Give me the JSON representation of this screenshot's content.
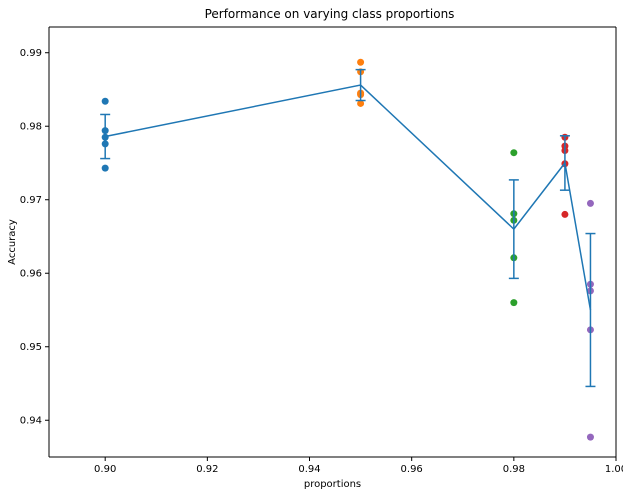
{
  "chart_data": {
    "type": "scatter",
    "title": "Performance on varying class proportions",
    "xlabel": "proportions",
    "ylabel": "Accuracy",
    "xlim": [
      0.889,
      1.0
    ],
    "ylim": [
      0.935,
      0.9935
    ],
    "xticks": [
      "0.90",
      "0.92",
      "0.94",
      "0.96",
      "0.98",
      "1.00"
    ],
    "xtick_values": [
      0.9,
      0.92,
      0.94,
      0.96,
      0.98,
      1.0
    ],
    "yticks": [
      "0.94",
      "0.95",
      "0.96",
      "0.97",
      "0.98",
      "0.99"
    ],
    "ytick_values": [
      0.94,
      0.95,
      0.96,
      0.97,
      0.98,
      0.99
    ],
    "grid": false,
    "points": [
      {
        "x": 0.9,
        "values": [
          0.9834,
          0.9794,
          0.9785,
          0.9776,
          0.9743
        ],
        "color": "#1f77b4"
      },
      {
        "x": 0.95,
        "values": [
          0.9887,
          0.9874,
          0.9845,
          0.9843,
          0.9831
        ],
        "color": "#ff7f0e"
      },
      {
        "x": 0.98,
        "values": [
          0.9764,
          0.9681,
          0.9672,
          0.9621,
          0.956
        ],
        "color": "#2ca02c"
      },
      {
        "x": 0.99,
        "values": [
          0.9785,
          0.9773,
          0.9767,
          0.9749,
          0.968
        ],
        "color": "#d62728"
      },
      {
        "x": 0.995,
        "values": [
          0.9695,
          0.9585,
          0.9576,
          0.9523,
          0.9377
        ],
        "color": "#9467bd"
      }
    ],
    "mean_line": {
      "color": "#1f77b4",
      "x": [
        0.9,
        0.95,
        0.98,
        0.99,
        0.995
      ],
      "y": [
        0.9786,
        0.9856,
        0.966,
        0.975,
        0.955
      ],
      "err": [
        0.003,
        0.0021,
        0.0067,
        0.0037,
        0.0104
      ]
    }
  }
}
